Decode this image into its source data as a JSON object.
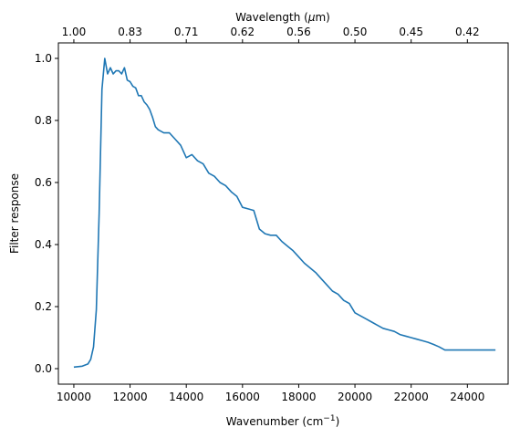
{
  "chart_data": {
    "type": "line",
    "xlabel_main": "Wavenumber (cm",
    "xlabel_sup": "−1",
    "xlabel_close": ")",
    "top_xlabel_main": "Wavelength (",
    "top_xlabel_mu": "μ",
    "top_xlabel_rest": "m)",
    "ylabel": "Filter response",
    "xlim": [
      9450,
      25450
    ],
    "ylim": [
      -0.05,
      1.05
    ],
    "x_ticks": [
      10000,
      12000,
      14000,
      16000,
      18000,
      20000,
      22000,
      24000
    ],
    "x_tick_labels": [
      "10000",
      "12000",
      "14000",
      "16000",
      "18000",
      "20000",
      "22000",
      "24000"
    ],
    "y_ticks": [
      0.0,
      0.2,
      0.4,
      0.6,
      0.8,
      1.0
    ],
    "y_tick_labels": [
      "0.0",
      "0.2",
      "0.4",
      "0.6",
      "0.8",
      "1.0"
    ],
    "top_ticks": [
      10000,
      12000,
      14000,
      16000,
      18000,
      20000,
      22000,
      24000
    ],
    "top_tick_labels": [
      "1.00",
      "0.83",
      "0.71",
      "0.62",
      "0.56",
      "0.50",
      "0.45",
      "0.42"
    ],
    "line_color": "#1f77b4",
    "series": [
      {
        "x": [
          10000,
          10300,
          10500,
          10600,
          10700,
          10800,
          10900,
          11000,
          11100,
          11200,
          11300,
          11400,
          11500,
          11600,
          11700,
          11800,
          11900,
          12000,
          12100,
          12200,
          12300,
          12400,
          12500,
          12600,
          12700,
          12800,
          12900,
          13000,
          13200,
          13400,
          13600,
          13800,
          14000,
          14200,
          14400,
          14600,
          14800,
          15000,
          15200,
          15400,
          15600,
          15800,
          16000,
          16200,
          16400,
          16600,
          16800,
          17000,
          17200,
          17400,
          17600,
          17800,
          18000,
          18200,
          18400,
          18600,
          18800,
          19000,
          19200,
          19400,
          19600,
          19800,
          20000,
          20200,
          20400,
          20600,
          20800,
          21000,
          21200,
          21400,
          21600,
          21800,
          22000,
          22200,
          22400,
          22600,
          22800,
          23000,
          23200,
          23400,
          23600,
          23800,
          24000,
          24200,
          24400,
          24600,
          24800,
          25000
        ],
        "y": [
          0.005,
          0.008,
          0.015,
          0.03,
          0.07,
          0.19,
          0.5,
          0.9,
          1.0,
          0.95,
          0.97,
          0.95,
          0.96,
          0.96,
          0.95,
          0.97,
          0.93,
          0.925,
          0.91,
          0.905,
          0.88,
          0.88,
          0.86,
          0.85,
          0.835,
          0.81,
          0.78,
          0.77,
          0.76,
          0.76,
          0.74,
          0.72,
          0.68,
          0.69,
          0.67,
          0.66,
          0.63,
          0.62,
          0.6,
          0.59,
          0.57,
          0.555,
          0.52,
          0.515,
          0.51,
          0.45,
          0.435,
          0.43,
          0.43,
          0.41,
          0.395,
          0.38,
          0.36,
          0.34,
          0.325,
          0.31,
          0.29,
          0.27,
          0.25,
          0.24,
          0.22,
          0.21,
          0.18,
          0.17,
          0.16,
          0.15,
          0.14,
          0.13,
          0.125,
          0.12,
          0.11,
          0.105,
          0.1,
          0.095,
          0.09,
          0.085,
          0.078,
          0.07,
          0.06,
          0.06,
          0.06,
          0.06,
          0.06,
          0.06,
          0.06,
          0.06,
          0.06,
          0.06
        ]
      }
    ]
  }
}
